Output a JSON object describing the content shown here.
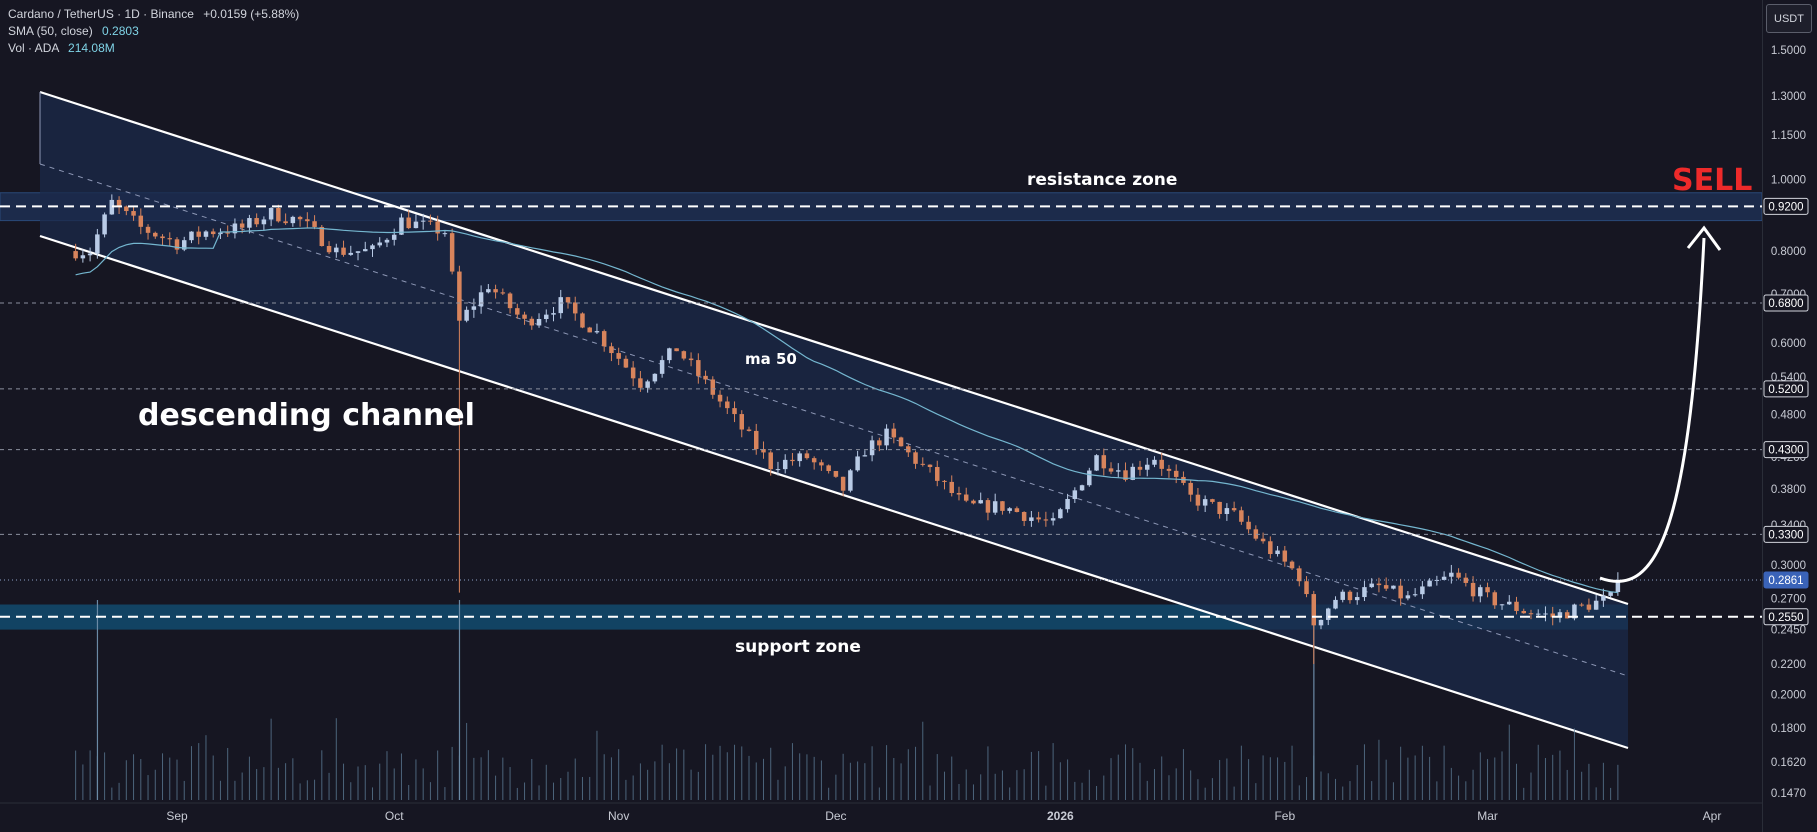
{
  "legend": {
    "title": "Cardano / TetherUS · 1D · Binance",
    "change": "+0.0159 (+5.88%)",
    "sma_label": "SMA (50, close)",
    "sma_value": "0.2803",
    "vol_label": "Vol · ADA",
    "vol_value": "214.08M"
  },
  "currency_button": "USDT",
  "colors": {
    "background": "#161622",
    "up": "#b9cbe6",
    "down": "#d8845c",
    "sma": "#74b6cf",
    "channel_fill": "#1b2a4a",
    "support_fill": "#12486a",
    "resistance_fill": "#1d2f52",
    "sell": "#ee2a2a"
  },
  "chart_data": {
    "type": "candlestick",
    "price_scale": "log",
    "y_ticks": [
      1.5,
      1.3,
      1.15,
      1.0,
      0.8,
      0.7,
      0.6,
      0.54,
      0.48,
      0.42,
      0.38,
      0.34,
      0.3,
      0.27,
      0.245,
      0.22,
      0.2,
      0.18,
      0.162,
      0.147
    ],
    "x_ticks": [
      "Sep",
      "Oct",
      "Nov",
      "Dec",
      "2026",
      "Feb",
      "Mar",
      "Apr"
    ],
    "price_labels": [
      {
        "value": 0.92,
        "text": "0.9200",
        "style": "outline"
      },
      {
        "value": 0.68,
        "text": "0.6800",
        "style": "outline"
      },
      {
        "value": 0.52,
        "text": "0.5200",
        "style": "outline"
      },
      {
        "value": 0.43,
        "text": "0.4300",
        "style": "outline"
      },
      {
        "value": 0.33,
        "text": "0.3300",
        "style": "outline"
      },
      {
        "value": 0.2861,
        "text": "0.2861",
        "style": "current"
      },
      {
        "value": 0.255,
        "text": "0.2550",
        "style": "outline"
      }
    ],
    "annotations": {
      "resistance_zone": "resistance zone",
      "support_zone": "support zone",
      "channel": "descending channel",
      "ma": "ma 50",
      "signal": "SELL"
    },
    "zones": {
      "resistance": [
        0.88,
        0.96
      ],
      "support": [
        0.245,
        0.265
      ]
    },
    "start_date": "2025-08-18",
    "close_anchors": [
      [
        "2025-08-18",
        0.8
      ],
      [
        "2025-08-20",
        0.8
      ],
      [
        "2025-08-23",
        0.93
      ],
      [
        "2025-08-27",
        0.86
      ],
      [
        "2025-09-01",
        0.82
      ],
      [
        "2025-09-05",
        0.85
      ],
      [
        "2025-09-10",
        0.86
      ],
      [
        "2025-09-14",
        0.9
      ],
      [
        "2025-09-18",
        0.88
      ],
      [
        "2025-09-23",
        0.8
      ],
      [
        "2025-09-28",
        0.8
      ],
      [
        "2025-10-02",
        0.88
      ],
      [
        "2025-10-08",
        0.85
      ],
      [
        "2025-10-10",
        0.64
      ],
      [
        "2025-10-14",
        0.72
      ],
      [
        "2025-10-19",
        0.64
      ],
      [
        "2025-10-24",
        0.68
      ],
      [
        "2025-10-29",
        0.62
      ],
      [
        "2025-11-04",
        0.53
      ],
      [
        "2025-11-09",
        0.59
      ],
      [
        "2025-11-15",
        0.5
      ],
      [
        "2025-11-22",
        0.41
      ],
      [
        "2025-11-27",
        0.42
      ],
      [
        "2025-12-02",
        0.38
      ],
      [
        "2025-12-05",
        0.43
      ],
      [
        "2025-12-08",
        0.45
      ],
      [
        "2025-12-14",
        0.4
      ],
      [
        "2025-12-19",
        0.36
      ],
      [
        "2025-12-24",
        0.36
      ],
      [
        "2025-12-31",
        0.34
      ],
      [
        "2026-01-06",
        0.42
      ],
      [
        "2026-01-10",
        0.4
      ],
      [
        "2026-01-14",
        0.42
      ],
      [
        "2026-01-19",
        0.37
      ],
      [
        "2026-01-25",
        0.35
      ],
      [
        "2026-01-29",
        0.32
      ],
      [
        "2026-02-03",
        0.29
      ],
      [
        "2026-02-05",
        0.25
      ],
      [
        "2026-02-08",
        0.27
      ],
      [
        "2026-02-14",
        0.28
      ],
      [
        "2026-02-18",
        0.27
      ],
      [
        "2026-02-24",
        0.29
      ],
      [
        "2026-03-01",
        0.27
      ],
      [
        "2026-03-06",
        0.26
      ],
      [
        "2026-03-10",
        0.255
      ],
      [
        "2026-03-15",
        0.265
      ],
      [
        "2026-03-18",
        0.27
      ],
      [
        "2026-03-19",
        0.2861
      ]
    ],
    "volume_spikes": [
      {
        "date": "2025-08-21",
        "relative": 1.0
      },
      {
        "date": "2025-10-10",
        "relative": 1.0
      },
      {
        "date": "2026-02-05",
        "relative": 1.0
      }
    ]
  }
}
